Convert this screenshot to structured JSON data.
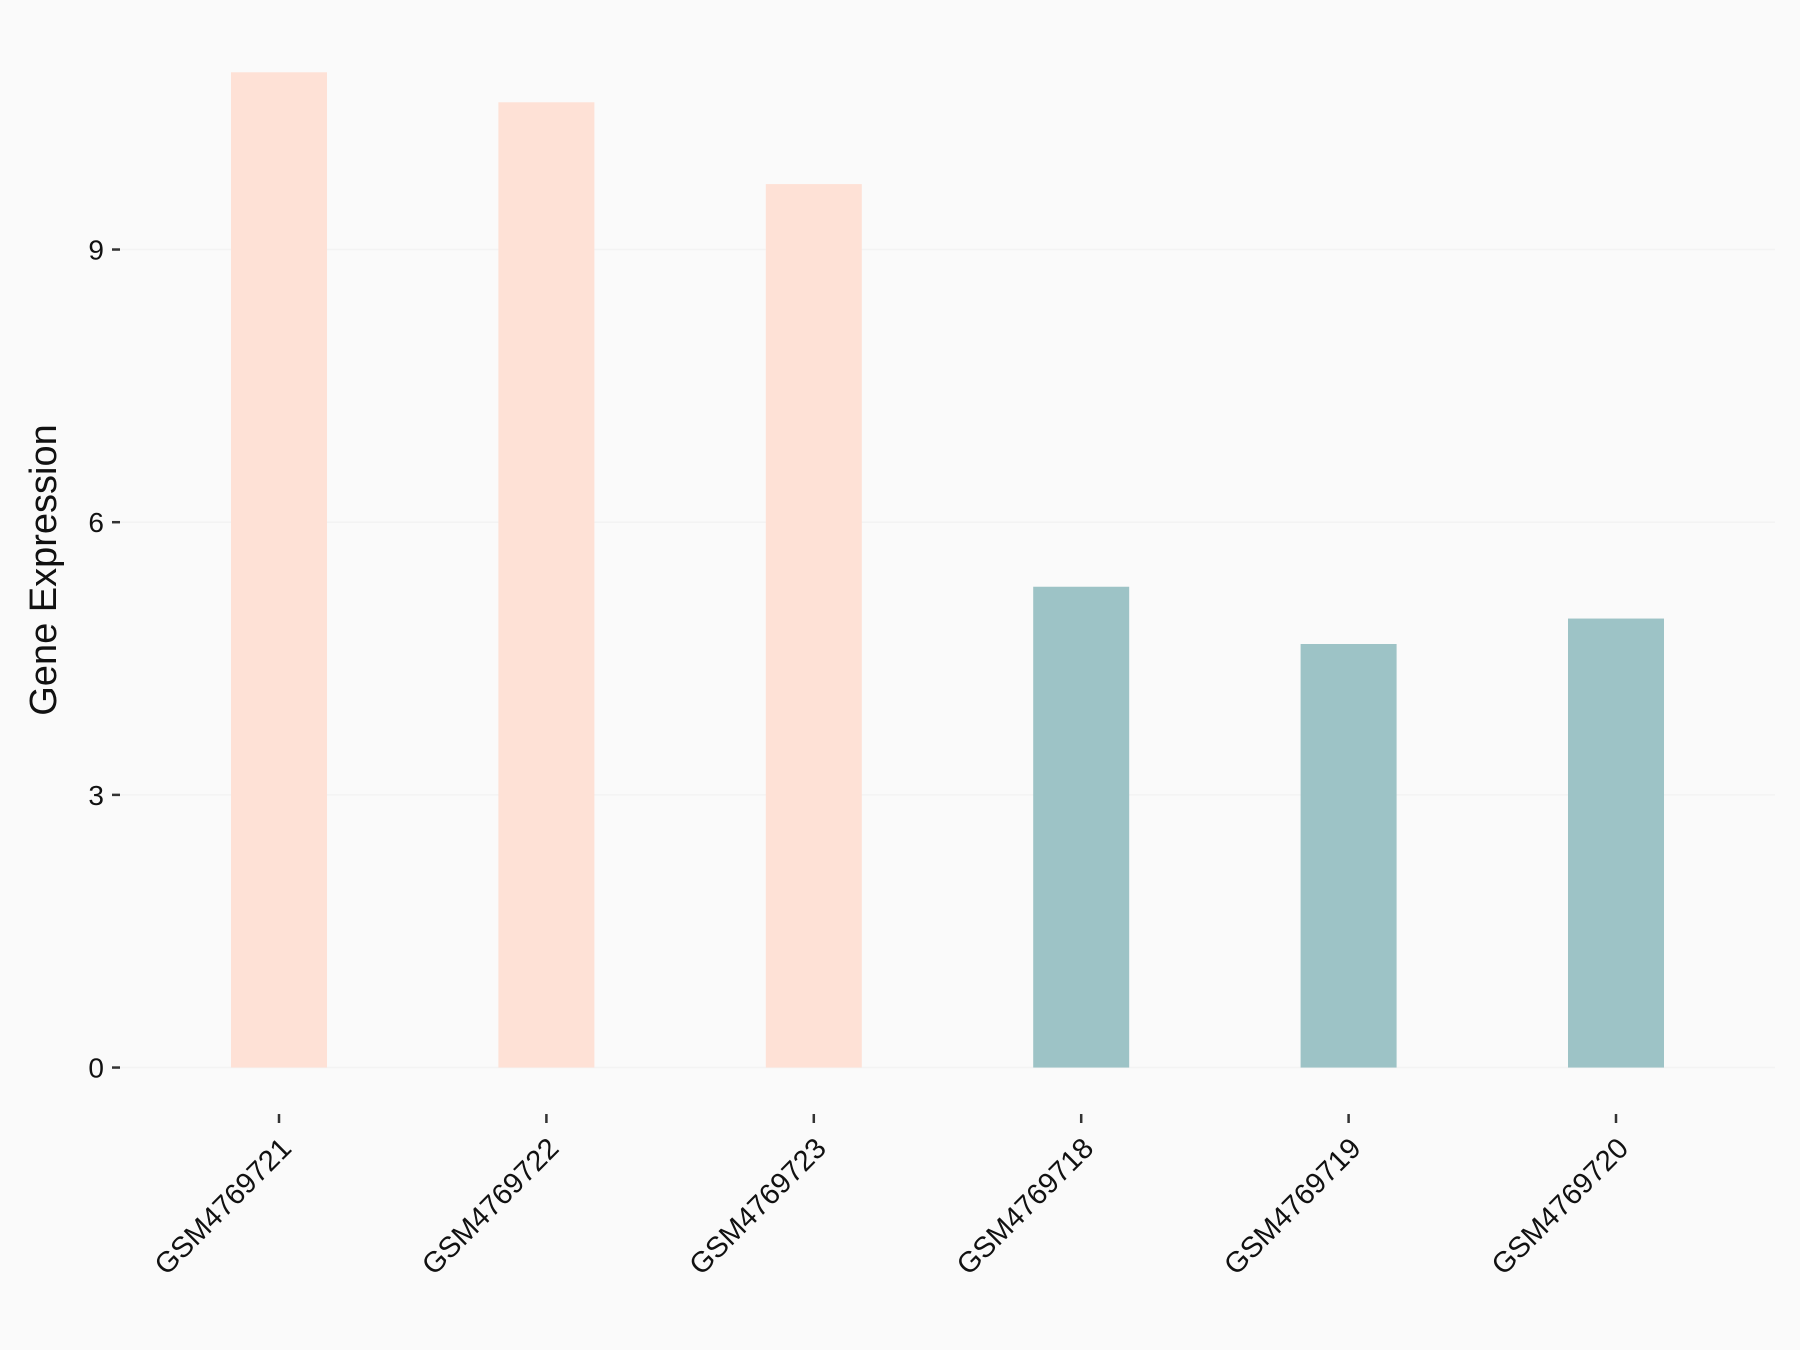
{
  "chart_data": {
    "type": "bar",
    "y_label": "Gene Expression",
    "categories": [
      "GSM4769721",
      "GSM4769722",
      "GSM4769723",
      "GSM4769718",
      "GSM4769719",
      "GSM4769720"
    ],
    "values": [
      10.95,
      10.62,
      9.72,
      5.29,
      4.66,
      4.94
    ],
    "colors": [
      "#fee1d6",
      "#fee1d6",
      "#fee1d6",
      "#9dc3c6",
      "#9dc3c6",
      "#9dc3c6"
    ],
    "ylim": [
      -0.5,
      11.5
    ],
    "yticks": [
      0,
      3,
      6,
      9
    ],
    "grid": true
  }
}
